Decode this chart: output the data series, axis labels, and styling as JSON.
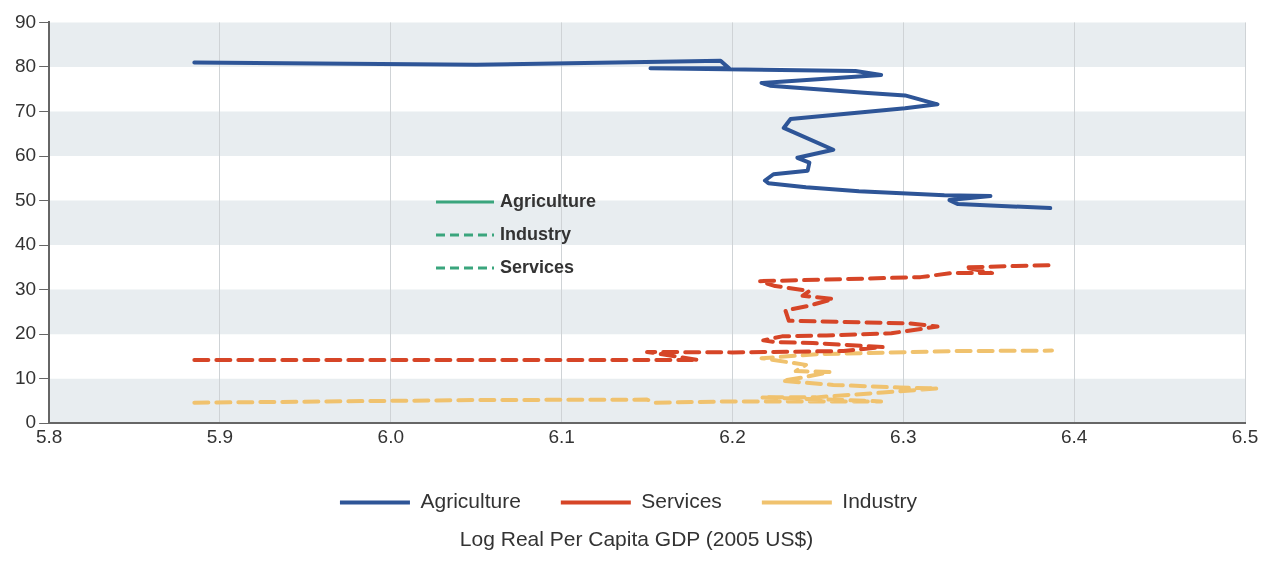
{
  "chart_data": {
    "type": "line",
    "xlabel": "Log Real Per Capita GDP (2005 US$)",
    "xlim": [
      5.8,
      6.5
    ],
    "xticks": [
      {
        "value": 5.8,
        "label": "5.8"
      },
      {
        "value": 5.9,
        "label": "5.9"
      },
      {
        "value": 6.0,
        "label": "6.0"
      },
      {
        "value": 6.1,
        "label": "6.1"
      },
      {
        "value": 6.2,
        "label": "6.2"
      },
      {
        "value": 6.3,
        "label": "6.3"
      },
      {
        "value": 6.4,
        "label": "6.4"
      },
      {
        "value": 6.5,
        "label": "6.5"
      }
    ],
    "ylim": [
      0,
      90
    ],
    "yticks": [
      0,
      10,
      20,
      30,
      40,
      50,
      60,
      70,
      80,
      90
    ],
    "grid": "x",
    "legend": "bottom",
    "marker": "none",
    "annotations": [
      "Agriculture",
      "Industry",
      "Services"
    ],
    "series": [
      {
        "name": "Agriculture",
        "color": "#2e5597",
        "line_style": "solid",
        "x": [
          5.885,
          6.05,
          6.176,
          6.193,
          6.198,
          6.152,
          6.272,
          6.287,
          6.217,
          6.222,
          6.277,
          6.301,
          6.32,
          6.301,
          6.262,
          6.234,
          6.23,
          6.259,
          6.238,
          6.245,
          6.244,
          6.224,
          6.219,
          6.221,
          6.243,
          6.274,
          6.324,
          6.351,
          6.327,
          6.332,
          6.386
        ],
        "values": [
          81,
          80.5,
          81.3,
          81.4,
          79.7,
          79.7,
          79.1,
          78.2,
          76.4,
          75.8,
          74.2,
          73.6,
          71.6,
          70.7,
          69.3,
          68.3,
          66.3,
          61.4,
          59.6,
          58.5,
          56.7,
          55.9,
          54.5,
          53.9,
          53,
          52.1,
          51.2,
          51,
          50.1,
          49.2,
          48.3
        ]
      },
      {
        "name": "Services",
        "color": "#d64527",
        "line_style": "dashed",
        "x": [
          5.885,
          6.18,
          6.15,
          6.2,
          6.265,
          6.288,
          6.247,
          6.225,
          6.218,
          6.229,
          6.255,
          6.293,
          6.32,
          6.304,
          6.233,
          6.231,
          6.245,
          6.259,
          6.241,
          6.245,
          6.225,
          6.216,
          6.25,
          6.31,
          6.328,
          6.352,
          6.336,
          6.387
        ],
        "values": [
          14.2,
          14.2,
          16,
          15.9,
          16.2,
          17.1,
          18,
          18.2,
          18.6,
          19.5,
          19.7,
          20.2,
          21.7,
          22.4,
          23,
          25.3,
          26.4,
          27.9,
          28.6,
          29.7,
          30.8,
          31.9,
          32.2,
          32.8,
          33.7,
          33.7,
          35,
          35.5
        ]
      },
      {
        "name": "Industry",
        "color": "#f0c26e",
        "line_style": "dashed",
        "x": [
          5.885,
          6.05,
          6.15,
          6.155,
          6.2,
          6.287,
          6.217,
          6.249,
          6.288,
          6.32,
          6.298,
          6.259,
          6.229,
          6.243,
          6.257,
          6.237,
          6.243,
          6.217,
          6.25,
          6.33,
          6.387
        ],
        "values": [
          4.6,
          5.2,
          5.3,
          4.6,
          4.9,
          4.9,
          5.8,
          5.8,
          6.9,
          7.8,
          8,
          8.6,
          9.5,
          10.4,
          11.5,
          11.7,
          13.1,
          14.6,
          15.5,
          16.2,
          16.3
        ]
      }
    ]
  }
}
